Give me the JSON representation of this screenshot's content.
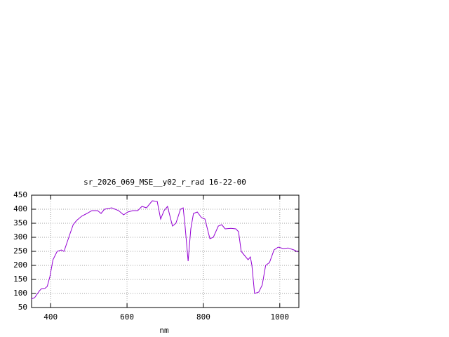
{
  "chart_data": {
    "type": "line",
    "title": "sr_2026_069_MSE__y02_r_rad 16-22-00",
    "xlabel": "nm",
    "x": [
      349,
      358,
      371,
      376,
      385,
      391,
      398,
      406,
      417,
      428,
      435,
      450,
      459,
      468,
      481,
      495,
      508,
      523,
      532,
      541,
      560,
      578,
      591,
      602,
      615,
      628,
      639,
      651,
      666,
      679,
      688,
      697,
      706,
      719,
      728,
      740,
      747,
      752,
      760,
      767,
      774,
      784,
      795,
      804,
      817,
      826,
      839,
      848,
      857,
      872,
      885,
      892,
      899,
      908,
      917,
      923,
      927,
      934,
      945,
      954,
      963,
      973,
      985,
      996,
      1009,
      1022,
      1037,
      1048
    ],
    "series": [
      {
        "color": "#9400d3",
        "values": [
          80,
          85,
          110,
          117,
          118,
          125,
          160,
          220,
          250,
          255,
          250,
          310,
          345,
          360,
          375,
          385,
          395,
          395,
          385,
          400,
          405,
          395,
          380,
          390,
          395,
          395,
          410,
          405,
          430,
          428,
          365,
          395,
          410,
          340,
          350,
          400,
          405,
          340,
          215,
          330,
          385,
          390,
          370,
          365,
          295,
          300,
          340,
          345,
          330,
          332,
          330,
          320,
          250,
          235,
          220,
          230,
          200,
          100,
          105,
          130,
          200,
          210,
          255,
          265,
          260,
          262,
          255,
          248
        ]
      }
    ],
    "xlim": [
      350,
      1050
    ],
    "xticks": [
      400,
      600,
      800,
      1000
    ],
    "ylim": [
      50,
      450
    ],
    "yticks": [
      50,
      100,
      150,
      200,
      250,
      300,
      350,
      400,
      450
    ],
    "grid": true
  }
}
